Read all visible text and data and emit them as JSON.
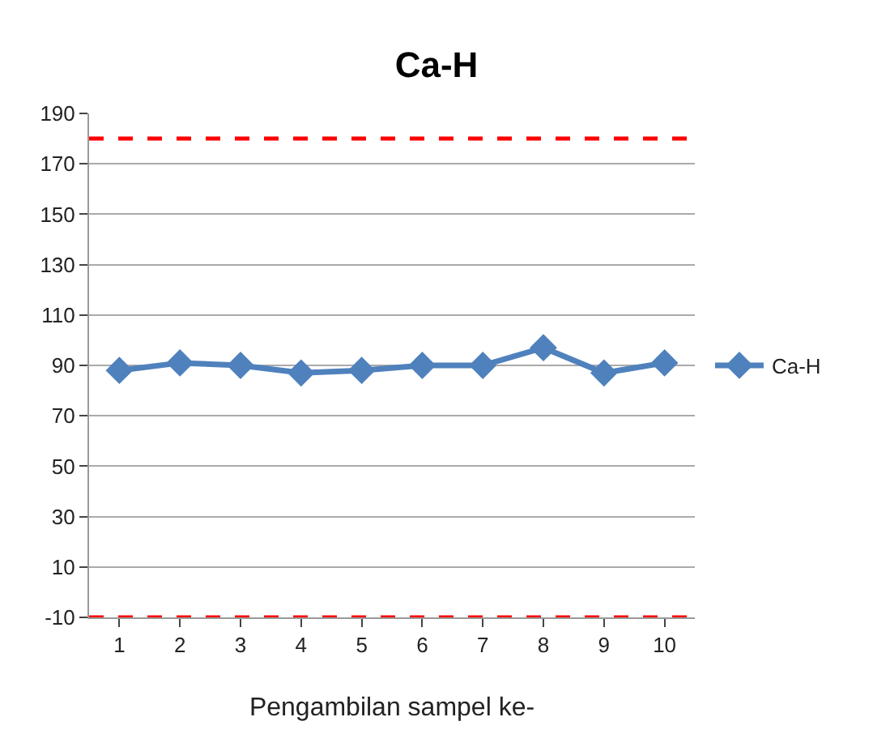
{
  "chart_data": {
    "type": "line",
    "title": "Ca-H",
    "xlabel": "Pengambilan sampel ke-",
    "categories": [
      "1",
      "2",
      "3",
      "4",
      "5",
      "6",
      "7",
      "8",
      "9",
      "10"
    ],
    "series": [
      {
        "name": "Ca-H",
        "color": "#4f81bd",
        "values": [
          88,
          91,
          90,
          87,
          88,
          90,
          90,
          97,
          87,
          91
        ]
      }
    ],
    "ylim": [
      -10,
      190
    ],
    "yticks": [
      -10,
      10,
      30,
      50,
      70,
      90,
      110,
      130,
      150,
      170,
      190
    ],
    "ref_lines": [
      {
        "axis": "y",
        "value": 180,
        "color": "#ff0000",
        "line_style": "dashed"
      },
      {
        "axis": "y",
        "value": -10,
        "color": "#ff0000",
        "line_style": "dashed"
      }
    ],
    "grid": "y",
    "legend": "right",
    "marker": "diamond",
    "line_style": "solid"
  }
}
